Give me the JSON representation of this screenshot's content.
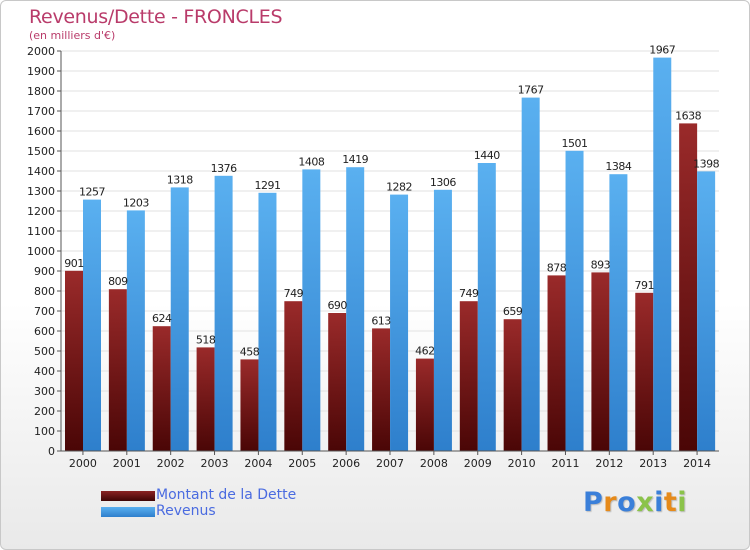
{
  "title": "Revenus/Dette - FRONCLES",
  "subtitle": "(en milliers d'€)",
  "legend": [
    {
      "label": "Montant de la Dette",
      "color": "#7a1a1a"
    },
    {
      "label": "Revenus",
      "color": "#4a9fe6"
    }
  ],
  "logo": {
    "text": "Proxiti",
    "letters": [
      {
        "ch": "P",
        "color": "#3a7fd9"
      },
      {
        "ch": "r",
        "color": "#e68a1a"
      },
      {
        "ch": "o",
        "color": "#3a7fd9"
      },
      {
        "ch": "x",
        "color": "#8bc34a"
      },
      {
        "ch": "i",
        "color": "#3a7fd9"
      },
      {
        "ch": "t",
        "color": "#e68a1a"
      },
      {
        "ch": "i",
        "color": "#8bc34a"
      }
    ]
  },
  "colors": {
    "debt": "#7a1a1a",
    "revenue": "#4a9fe6",
    "title": "#b93b6a",
    "legend_text": "#4a6be0"
  },
  "chart_data": {
    "type": "bar",
    "title": "Revenus/Dette - FRONCLES",
    "subtitle": "(en milliers d'€)",
    "categories": [
      "2000",
      "2001",
      "2002",
      "2003",
      "2004",
      "2005",
      "2006",
      "2007",
      "2008",
      "2009",
      "2010",
      "2011",
      "2012",
      "2013",
      "2014"
    ],
    "series": [
      {
        "name": "Montant de la Dette",
        "values": [
          901,
          809,
          624,
          518,
          458,
          749,
          690,
          613,
          462,
          749,
          659,
          878,
          893,
          791,
          1638
        ]
      },
      {
        "name": "Revenus",
        "values": [
          1257,
          1203,
          1318,
          1376,
          1291,
          1408,
          1419,
          1282,
          1306,
          1440,
          1767,
          1501,
          1384,
          1967,
          1398
        ]
      }
    ],
    "value_labels": [
      [
        "901",
        "809",
        "624",
        "518",
        "458",
        "749",
        "690",
        "613",
        "462",
        "749",
        "659",
        "878",
        "893",
        "791",
        "1638"
      ],
      [
        "1257",
        "1203",
        "1318",
        "1376",
        "1291",
        "1408",
        "1419",
        "1282",
        "1306",
        "1440",
        "1767",
        "1501",
        "1384",
        "1967",
        "1398"
      ]
    ],
    "ylim": [
      0,
      2000
    ],
    "ytick_step": 100,
    "yticks": [
      "0",
      "100",
      "200",
      "300",
      "400",
      "500",
      "600",
      "700",
      "800",
      "900",
      "1000",
      "1100",
      "1200",
      "1300",
      "1400",
      "1500",
      "1600",
      "1700",
      "1800",
      "1900",
      "2000"
    ],
    "grid": true,
    "legend_position": "bottom-left"
  }
}
